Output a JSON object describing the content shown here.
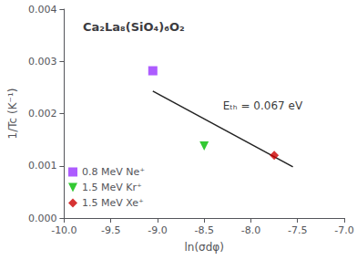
{
  "chart_data": {
    "type": "scatter",
    "title": "Ca₂La₈(SiO₄)₆O₂",
    "xlabel": "ln(σdφ)",
    "ylabel": "1/Tc (K⁻¹)",
    "xlim": [
      -10.0,
      -7.0
    ],
    "ylim": [
      0.0,
      0.004
    ],
    "xticks": [
      {
        "value": -10.0,
        "label": "-10.0"
      },
      -9.5,
      {
        "value": -9.0,
        "label": "-9.0"
      },
      -8.5,
      {
        "value": -8.0,
        "label": "-8.0"
      },
      -7.5,
      {
        "value": -7.0,
        "label": "-7.0"
      }
    ],
    "yticks": [
      {
        "value": 0.0,
        "label": "0.000"
      },
      {
        "value": 0.001,
        "label": "0.001"
      },
      {
        "value": 0.002,
        "label": "0.002"
      },
      {
        "value": 0.003,
        "label": "0.003"
      },
      {
        "value": 0.004,
        "label": "0.004"
      }
    ],
    "series": [
      {
        "name": "0.8 MeV Ne⁺",
        "type": "scatter",
        "color": "#9933FF",
        "marker": "square",
        "x": [
          -9.05
        ],
        "values": [
          0.00282
        ]
      },
      {
        "name": "1.5 MeV Kr⁺",
        "type": "scatter",
        "color": "#00BB00",
        "marker": "triangle-down",
        "x": [
          -8.5
        ],
        "values": [
          0.00138
        ]
      },
      {
        "name": "1.5 MeV Xe⁺",
        "type": "scatter",
        "color": "#CC0000",
        "marker": "diamond",
        "x": [
          -7.75
        ],
        "values": [
          0.0012
        ]
      },
      {
        "type": "line",
        "color": "#222222",
        "x": [
          -9.05,
          -7.55
        ],
        "values": [
          0.00243,
          0.00098
        ]
      }
    ],
    "annotations": [
      {
        "text": "Eₜₕ = 0.067 eV",
        "x": -8.3,
        "y": 0.00215
      }
    ],
    "legend": "lower left",
    "grid": false
  }
}
